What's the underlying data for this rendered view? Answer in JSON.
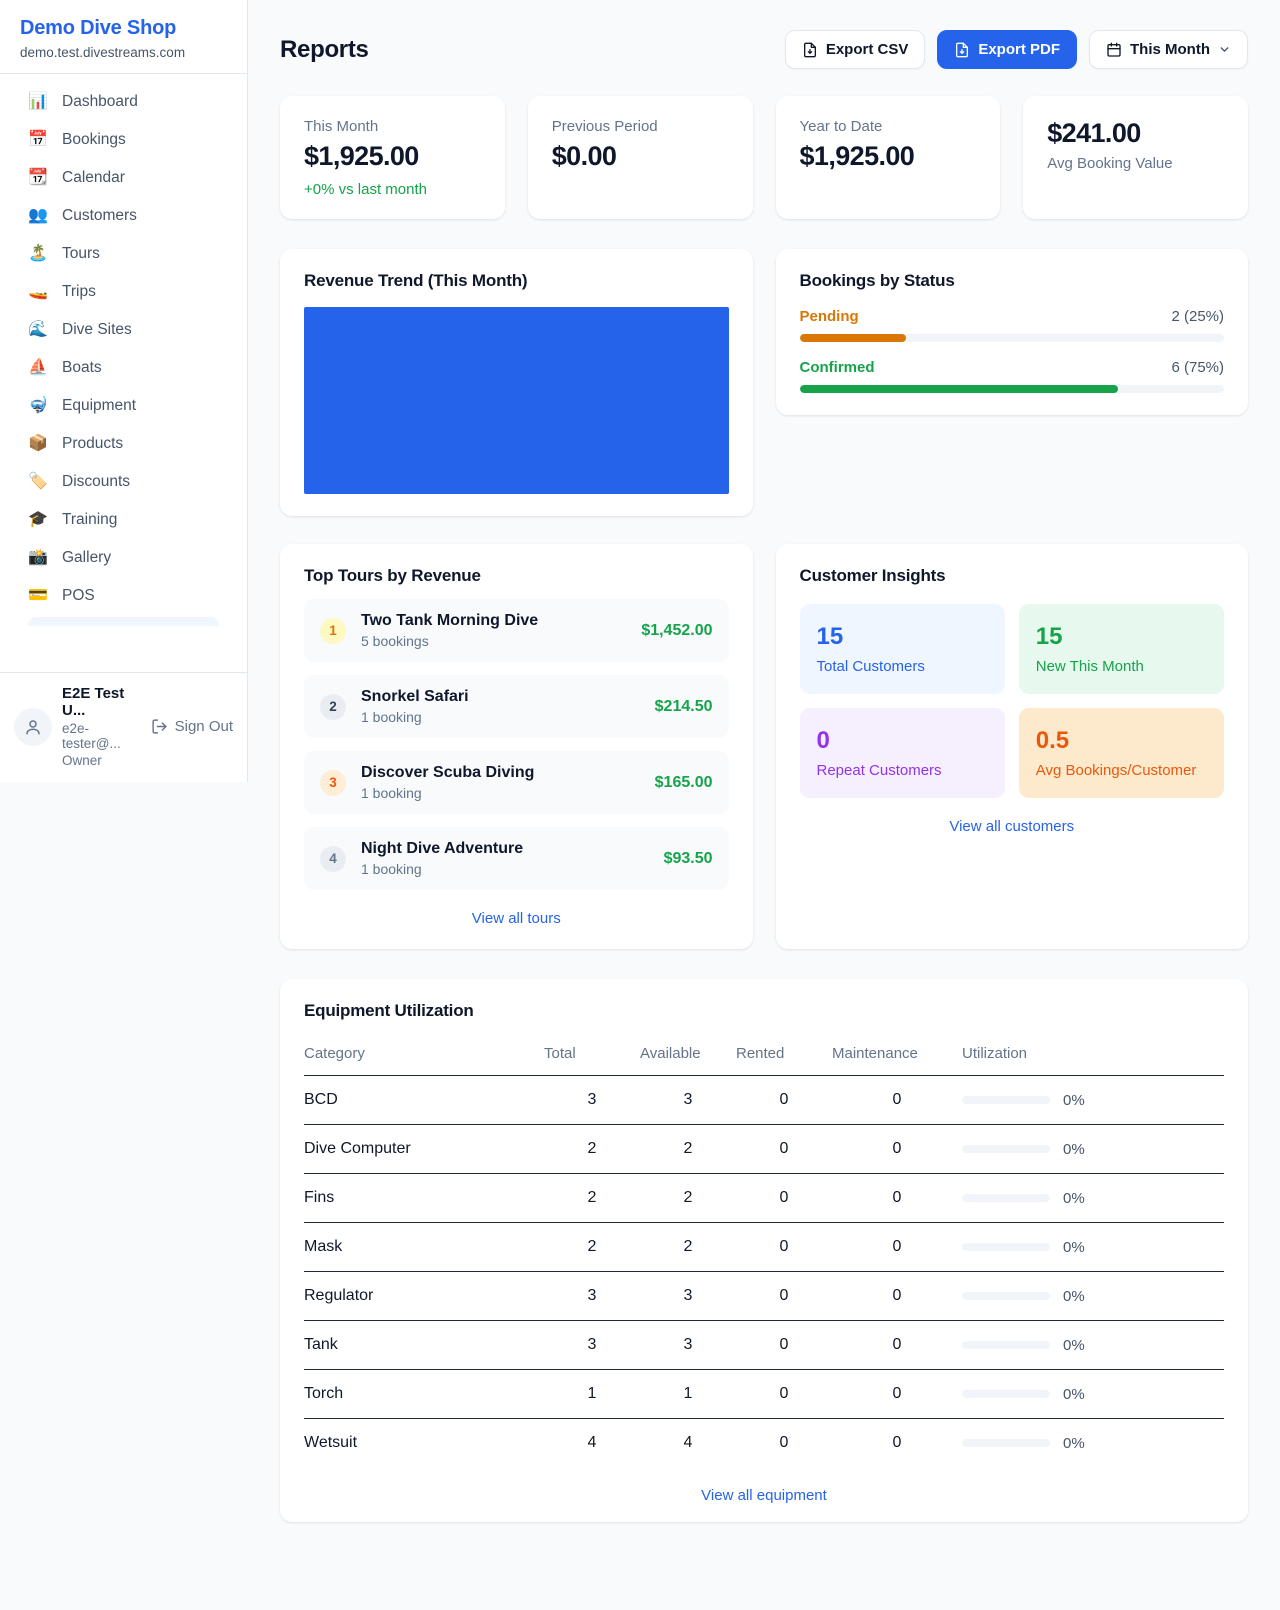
{
  "sidebar": {
    "shop_name": "Demo Dive Shop",
    "shop_domain": "demo.test.divestreams.com",
    "nav": [
      {
        "icon": "📊",
        "label": "Dashboard"
      },
      {
        "icon": "📅",
        "label": "Bookings"
      },
      {
        "icon": "📆",
        "label": "Calendar"
      },
      {
        "icon": "👥",
        "label": "Customers"
      },
      {
        "icon": "🏝️",
        "label": "Tours"
      },
      {
        "icon": "🚤",
        "label": "Trips"
      },
      {
        "icon": "🌊",
        "label": "Dive Sites"
      },
      {
        "icon": "⛵",
        "label": "Boats"
      },
      {
        "icon": "🤿",
        "label": "Equipment"
      },
      {
        "icon": "📦",
        "label": "Products"
      },
      {
        "icon": "🏷️",
        "label": "Discounts"
      },
      {
        "icon": "🎓",
        "label": "Training"
      },
      {
        "icon": "📸",
        "label": "Gallery"
      },
      {
        "icon": "💳",
        "label": "POS"
      }
    ],
    "user": {
      "name": "E2E Test U...",
      "email": "e2e-tester@...",
      "role": "Owner",
      "sign_out_label": "Sign Out"
    }
  },
  "header": {
    "title": "Reports",
    "export_csv_label": "Export CSV",
    "export_pdf_label": "Export PDF",
    "period_label": "This Month"
  },
  "stats": {
    "this_month": {
      "label": "This Month",
      "value": "$1,925.00",
      "delta": "+0% vs last month"
    },
    "previous_period": {
      "label": "Previous Period",
      "value": "$0.00"
    },
    "year_to_date": {
      "label": "Year to Date",
      "value": "$1,925.00"
    },
    "avg_booking": {
      "label": "Avg Booking Value",
      "value": "$241.00"
    }
  },
  "revenue_trend": {
    "title": "Revenue Trend (This Month)"
  },
  "bookings_by_status": {
    "title": "Bookings by Status",
    "items": [
      {
        "label": "Pending",
        "count_text": "2 (25%)",
        "pct": "25%",
        "color": "#d97706"
      },
      {
        "label": "Confirmed",
        "count_text": "6 (75%)",
        "pct": "75%",
        "color": "#16a34a"
      }
    ]
  },
  "top_tours": {
    "title": "Top Tours by Revenue",
    "items": [
      {
        "rank": "1",
        "name": "Two Tank Morning Dive",
        "bookings": "5 bookings",
        "revenue": "$1,452.00"
      },
      {
        "rank": "2",
        "name": "Snorkel Safari",
        "bookings": "1 booking",
        "revenue": "$214.50"
      },
      {
        "rank": "3",
        "name": "Discover Scuba Diving",
        "bookings": "1 booking",
        "revenue": "$165.00"
      },
      {
        "rank": "4",
        "name": "Night Dive Adventure",
        "bookings": "1 booking",
        "revenue": "$93.50"
      }
    ],
    "view_all_label": "View all tours"
  },
  "customer_insights": {
    "title": "Customer Insights",
    "tiles": [
      {
        "value": "15",
        "label": "Total Customers",
        "bg": "#eff6ff",
        "color": "#2563eb"
      },
      {
        "value": "15",
        "label": "New This Month",
        "bg": "#e7f8ef",
        "color": "#16a34a"
      },
      {
        "value": "0",
        "label": "Repeat Customers",
        "bg": "#f6effe",
        "color": "#9333ea"
      },
      {
        "value": "0.5",
        "label": "Avg Bookings/Customer",
        "bg": "#fdeacd",
        "color": "#ea580c"
      }
    ],
    "view_all_label": "View all customers"
  },
  "equipment": {
    "title": "Equipment Utilization",
    "columns": [
      "Category",
      "Total",
      "Available",
      "Rented",
      "Maintenance",
      "Utilization"
    ],
    "rows": [
      {
        "category": "BCD",
        "total": "3",
        "available": "3",
        "rented": "0",
        "maintenance": "0",
        "utilization": "0%"
      },
      {
        "category": "Dive Computer",
        "total": "2",
        "available": "2",
        "rented": "0",
        "maintenance": "0",
        "utilization": "0%"
      },
      {
        "category": "Fins",
        "total": "2",
        "available": "2",
        "rented": "0",
        "maintenance": "0",
        "utilization": "0%"
      },
      {
        "category": "Mask",
        "total": "2",
        "available": "2",
        "rented": "0",
        "maintenance": "0",
        "utilization": "0%"
      },
      {
        "category": "Regulator",
        "total": "3",
        "available": "3",
        "rented": "0",
        "maintenance": "0",
        "utilization": "0%"
      },
      {
        "category": "Tank",
        "total": "3",
        "available": "3",
        "rented": "0",
        "maintenance": "0",
        "utilization": "0%"
      },
      {
        "category": "Torch",
        "total": "1",
        "available": "1",
        "rented": "0",
        "maintenance": "0",
        "utilization": "0%"
      },
      {
        "category": "Wetsuit",
        "total": "4",
        "available": "4",
        "rented": "0",
        "maintenance": "0",
        "utilization": "0%"
      }
    ],
    "view_all_label": "View all equipment"
  },
  "chart_data": [
    {
      "type": "bar",
      "title": "Revenue Trend (This Month)",
      "categories": [
        "This Month"
      ],
      "values": [
        1925
      ],
      "bar_color": "#2563eb",
      "note": "single bar filling entire plot area, no axes or labels shown"
    },
    {
      "type": "bar",
      "title": "Bookings by Status",
      "categories": [
        "Pending",
        "Confirmed"
      ],
      "values": [
        2,
        6
      ],
      "percentages": [
        25,
        75
      ],
      "colors": [
        "#d97706",
        "#16a34a"
      ]
    }
  ],
  "colors": {
    "brand_blue": "#2563eb",
    "green": "#16a34a",
    "amber": "#d97706",
    "orange": "#ea580c",
    "purple": "#9333ea",
    "page_bg": "#f8fafc",
    "card_bg": "#ffffff",
    "muted_text": "#64748b",
    "dark_text": "#0f172a"
  }
}
